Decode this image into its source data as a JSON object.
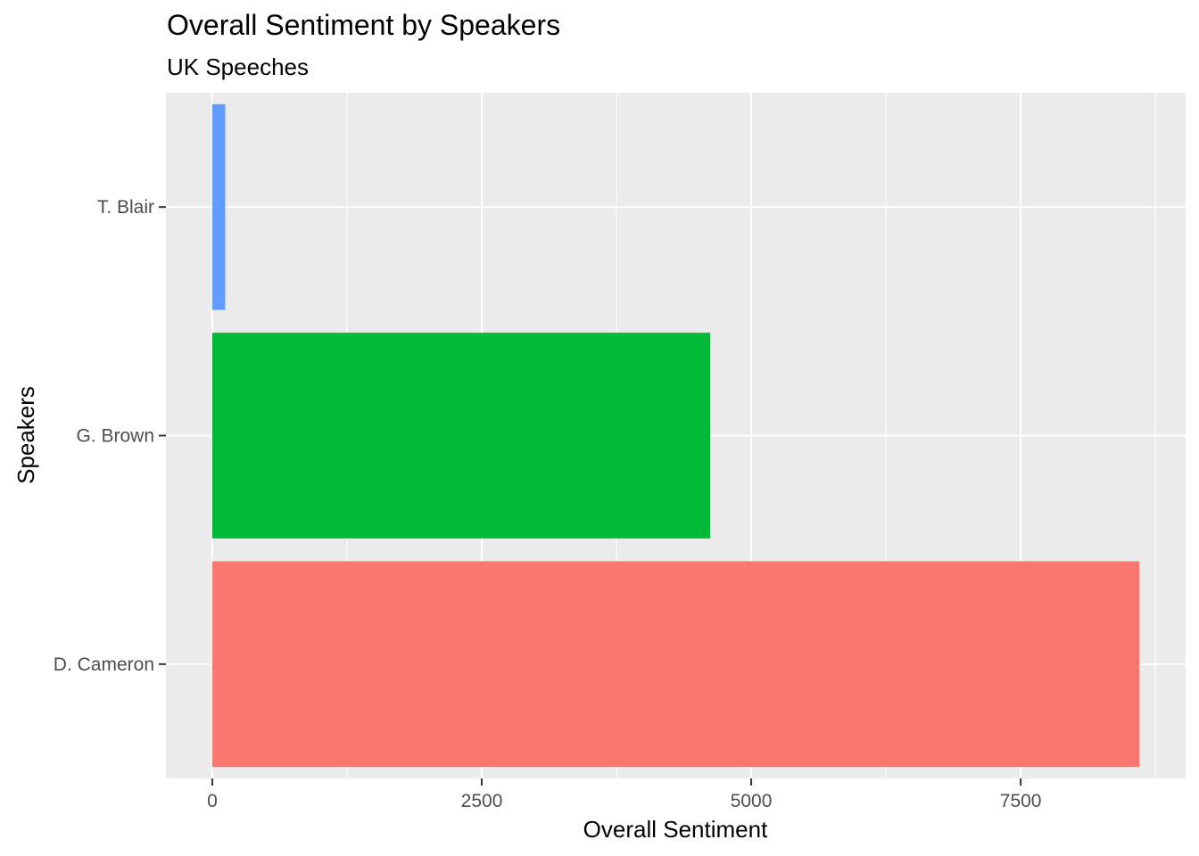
{
  "chart_data": {
    "type": "bar",
    "orientation": "horizontal",
    "title": "Overall Sentiment by Speakers",
    "subtitle": "UK Speeches",
    "xlabel": "Overall Sentiment",
    "ylabel": "Speakers",
    "categories": [
      "D. Cameron",
      "G. Brown",
      "T. Blair"
    ],
    "values": [
      8600,
      4620,
      120
    ],
    "colors": [
      "#F8766D",
      "#00BA38",
      "#619CFF"
    ],
    "x_ticks": [
      0,
      2500,
      5000,
      7500
    ],
    "x_tick_labels": [
      "0",
      "2500",
      "5000",
      "7500"
    ],
    "xlim": [
      -430,
      9030
    ],
    "grid": true,
    "legend": "none",
    "panel_background": "#EBEBEB",
    "grid_color": "#FFFFFF"
  }
}
